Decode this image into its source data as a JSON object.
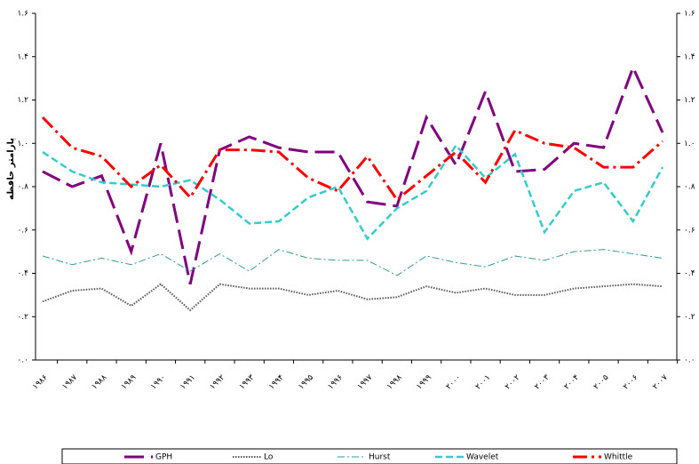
{
  "chart_data": {
    "type": "line",
    "y_label": "پارامتر حافظه",
    "categories": [
      "۱۹۸۶",
      "۱۹۸۷",
      "۱۹۸۸",
      "۱۹۸۹",
      "۱۹۹۰",
      "۱۹۹۱",
      "۱۹۹۲",
      "۱۹۹۳",
      "۱۹۹۴",
      "۱۹۹۵",
      "۱۹۹۶",
      "۱۹۹۷",
      "۱۹۹۸",
      "۱۹۹۹",
      "۲۰۰۰",
      "۲۰۰۱",
      "۲۰۰۲",
      "۲۰۰۳",
      "۲۰۰۴",
      "۲۰۰۵",
      "۲۰۰۶",
      "۲۰۰۷"
    ],
    "series": [
      {
        "name": "GPH",
        "color": "#800080",
        "values": [
          0.87,
          0.8,
          0.85,
          0.5,
          1.0,
          0.35,
          0.97,
          1.03,
          0.98,
          0.96,
          0.96,
          0.73,
          0.71,
          1.12,
          0.9,
          1.24,
          0.87,
          0.88,
          1.0,
          0.98,
          1.35,
          1.05
        ]
      },
      {
        "name": "Lo",
        "color": "#555555",
        "values": [
          0.27,
          0.32,
          0.33,
          0.25,
          0.35,
          0.23,
          0.35,
          0.33,
          0.33,
          0.3,
          0.32,
          0.28,
          0.29,
          0.34,
          0.31,
          0.33,
          0.3,
          0.3,
          0.33,
          0.34,
          0.35,
          0.34
        ]
      },
      {
        "name": "Hurst",
        "color": "#339999",
        "values": [
          0.48,
          0.44,
          0.47,
          0.44,
          0.49,
          0.41,
          0.49,
          0.41,
          0.51,
          0.47,
          0.46,
          0.46,
          0.39,
          0.48,
          0.45,
          0.43,
          0.48,
          0.46,
          0.5,
          0.51,
          0.49,
          0.47
        ]
      },
      {
        "name": "Wavelet",
        "color": "#33cccc",
        "values": [
          0.96,
          0.87,
          0.82,
          0.81,
          0.8,
          0.83,
          0.74,
          0.63,
          0.64,
          0.75,
          0.8,
          0.56,
          0.7,
          0.78,
          0.99,
          0.84,
          0.95,
          0.59,
          0.78,
          0.82,
          0.64,
          0.89
        ]
      },
      {
        "name": "Whittle",
        "color": "#ff0000",
        "values": [
          1.12,
          0.98,
          0.94,
          0.8,
          0.9,
          0.75,
          0.97,
          0.97,
          0.96,
          0.84,
          0.78,
          0.94,
          0.74,
          0.85,
          0.96,
          0.82,
          1.06,
          1.0,
          0.98,
          0.89,
          0.89,
          1.01
        ]
      }
    ],
    "ylim": [
      0,
      1.6
    ],
    "yticks": [
      {
        "value": 0,
        "label": "۰.۰"
      },
      {
        "value": 0.2,
        "label": "۰.۲"
      },
      {
        "value": 0.4,
        "label": "۰.۴"
      },
      {
        "value": 0.6,
        "label": "۰.۶"
      },
      {
        "value": 0.8,
        "label": "۰.۸"
      },
      {
        "value": 1.0,
        "label": "۱.۰"
      },
      {
        "value": 1.2,
        "label": "۱.۲"
      },
      {
        "value": 1.4,
        "label": "۱.۴"
      },
      {
        "value": 1.6,
        "label": "۱.۶"
      }
    ],
    "grid": false
  }
}
